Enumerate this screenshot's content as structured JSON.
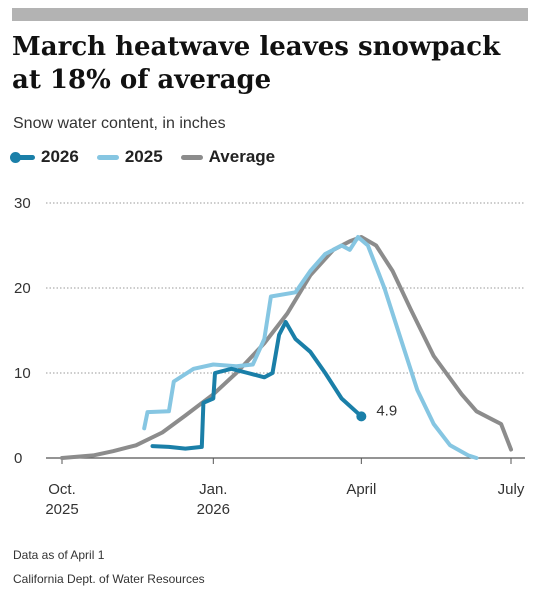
{
  "title": "March heatwave leaves snowpack at 18% of average",
  "subtitle": "Snow water content, in inches",
  "colors": {
    "s2026": "#1a7fa8",
    "s2025": "#86c6e2",
    "average": "#8c8c8c",
    "grid": "#9a9a9a",
    "bar": "#b3b3b3"
  },
  "footnotes": {
    "asof": "Data as of April 1",
    "source": "California Dept. of Water Resources"
  },
  "chart_data": {
    "type": "line",
    "ylim": [
      0,
      30
    ],
    "yticks": [
      0,
      10,
      20,
      30
    ],
    "xlabels": [
      {
        "at": "2025-10-01",
        "line1": "Oct.",
        "line2": "2025"
      },
      {
        "at": "2026-01-01",
        "line1": "Jan.",
        "line2": "2026"
      },
      {
        "at": "2026-04-01",
        "line1": "April",
        "line2": ""
      },
      {
        "at": "2026-07-01",
        "line1": "July",
        "line2": ""
      }
    ],
    "end_label": {
      "series": "2026",
      "text": "4.9"
    },
    "series": [
      {
        "name": "2026",
        "color": "#1a7fa8",
        "points": [
          [
            "2025-11-25",
            1.4
          ],
          [
            "2025-12-05",
            1.3
          ],
          [
            "2025-12-15",
            1.1
          ],
          [
            "2025-12-25",
            1.3
          ],
          [
            "2025-12-26",
            6.5
          ],
          [
            "2026-01-01",
            7.0
          ],
          [
            "2026-01-02",
            10.0
          ],
          [
            "2026-01-12",
            10.5
          ],
          [
            "2026-01-22",
            10.0
          ],
          [
            "2026-02-01",
            9.5
          ],
          [
            "2026-02-06",
            10.0
          ],
          [
            "2026-02-10",
            14.5
          ],
          [
            "2026-02-14",
            16.0
          ],
          [
            "2026-02-20",
            14.0
          ],
          [
            "2026-03-01",
            12.5
          ],
          [
            "2026-03-10",
            10.0
          ],
          [
            "2026-03-20",
            7.0
          ],
          [
            "2026-04-01",
            4.9
          ]
        ]
      },
      {
        "name": "2025",
        "color": "#86c6e2",
        "points": [
          [
            "2025-11-20",
            3.5
          ],
          [
            "2025-11-22",
            5.4
          ],
          [
            "2025-12-05",
            5.5
          ],
          [
            "2025-12-08",
            9.0
          ],
          [
            "2025-12-20",
            10.5
          ],
          [
            "2026-01-01",
            11.0
          ],
          [
            "2026-01-15",
            10.8
          ],
          [
            "2026-01-25",
            11.0
          ],
          [
            "2026-02-01",
            14.0
          ],
          [
            "2026-02-05",
            19.0
          ],
          [
            "2026-02-20",
            19.5
          ],
          [
            "2026-03-01",
            22.0
          ],
          [
            "2026-03-10",
            24.0
          ],
          [
            "2026-03-20",
            25.0
          ],
          [
            "2026-03-25",
            24.5
          ],
          [
            "2026-03-30",
            26.0
          ],
          [
            "2026-04-05",
            25.0
          ],
          [
            "2026-04-15",
            20.0
          ],
          [
            "2026-04-25",
            14.0
          ],
          [
            "2026-05-05",
            8.0
          ],
          [
            "2026-05-15",
            4.0
          ],
          [
            "2026-05-25",
            1.5
          ],
          [
            "2026-06-05",
            0.3
          ],
          [
            "2026-06-10",
            0.0
          ]
        ]
      },
      {
        "name": "Average",
        "color": "#8c8c8c",
        "points": [
          [
            "2025-10-01",
            0.0
          ],
          [
            "2025-10-20",
            0.3
          ],
          [
            "2025-11-01",
            0.8
          ],
          [
            "2025-11-15",
            1.5
          ],
          [
            "2025-12-01",
            3.0
          ],
          [
            "2025-12-15",
            5.0
          ],
          [
            "2026-01-01",
            7.5
          ],
          [
            "2026-01-15",
            10.0
          ],
          [
            "2026-02-01",
            13.5
          ],
          [
            "2026-02-15",
            17.0
          ],
          [
            "2026-03-01",
            21.5
          ],
          [
            "2026-03-15",
            24.5
          ],
          [
            "2026-03-25",
            25.5
          ],
          [
            "2026-04-01",
            26.0
          ],
          [
            "2026-04-10",
            25.0
          ],
          [
            "2026-04-20",
            22.0
          ],
          [
            "2026-05-01",
            17.5
          ],
          [
            "2026-05-15",
            12.0
          ],
          [
            "2026-06-01",
            7.5
          ],
          [
            "2026-06-10",
            5.5
          ],
          [
            "2026-06-20",
            4.5
          ],
          [
            "2026-06-25",
            4.0
          ],
          [
            "2026-07-01",
            1.0
          ]
        ]
      }
    ]
  }
}
